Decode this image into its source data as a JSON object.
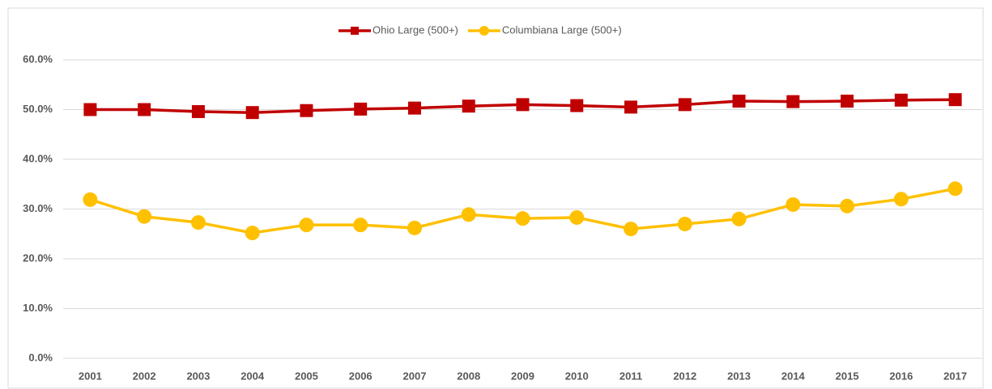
{
  "chart_data": {
    "type": "line",
    "categories": [
      "2001",
      "2002",
      "2003",
      "2004",
      "2005",
      "2006",
      "2007",
      "2008",
      "2009",
      "2010",
      "2011",
      "2012",
      "2013",
      "2014",
      "2015",
      "2016",
      "2017"
    ],
    "series": [
      {
        "name": "Ohio Large (500+)",
        "color": "#c00000",
        "marker": "square",
        "values": [
          50.0,
          50.0,
          49.6,
          49.4,
          49.8,
          50.1,
          50.3,
          50.7,
          51.0,
          50.8,
          50.5,
          51.0,
          51.7,
          51.6,
          51.7,
          51.9,
          52.0
        ]
      },
      {
        "name": "Columbiana Large (500+)",
        "color": "#ffc000",
        "marker": "circle",
        "values": [
          31.9,
          28.5,
          27.3,
          25.2,
          26.8,
          26.8,
          26.2,
          28.9,
          28.1,
          28.3,
          26.0,
          27.0,
          28.0,
          30.9,
          30.6,
          32.0,
          34.1
        ]
      }
    ],
    "ylim": [
      0,
      60
    ],
    "yticks": [
      {
        "value": 0,
        "label": "0.0%"
      },
      {
        "value": 10,
        "label": "10.0%"
      },
      {
        "value": 20,
        "label": "20.0%"
      },
      {
        "value": 30,
        "label": "30.0%"
      },
      {
        "value": 40,
        "label": "40.0%"
      },
      {
        "value": 50,
        "label": "50.0%"
      },
      {
        "value": 60,
        "label": "60.0%"
      }
    ],
    "grid": true,
    "legend": "top"
  }
}
